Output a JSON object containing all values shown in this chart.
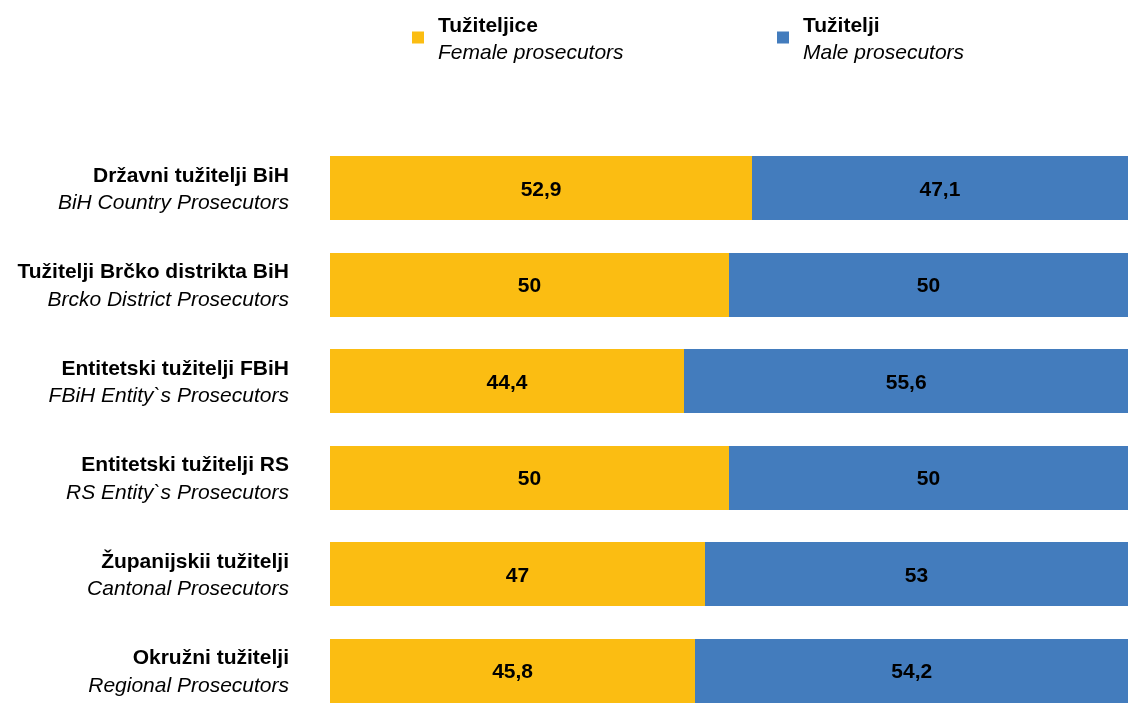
{
  "chart_data": {
    "type": "bar",
    "orientation": "horizontal",
    "stacked": true,
    "legend": "top",
    "tick_labels": "y",
    "xlim": [
      0,
      100
    ],
    "categories": [
      "Državni tužitelji BiH\nBiH Country Prosecutors",
      "Tužitelji Brčko distrikta BiH\nBrcko District Prosecutors",
      "Entitetski tužitelji FBiH\nFBiH Entity`s Prosecutors",
      "Entitetski tužitelji RS\nRS Entity`s Prosecutors",
      "Županijskii tužitelji\nCantonal Prosecutors",
      "Okružni tužitelji\nRegional Prosecutors"
    ],
    "series": [
      {
        "name": "Tužiteljice\nFemale prosecutors",
        "color": "#fbbd12",
        "values": [
          52.9,
          50,
          44.4,
          50,
          47,
          45.8
        ],
        "value_labels": [
          "52,9",
          "50",
          "44,4",
          "50",
          "47",
          "45,8"
        ]
      },
      {
        "name": "Tužitelji\nMale prosecutors",
        "color": "#437cbd",
        "values": [
          47.1,
          50,
          55.6,
          50,
          53,
          54.2
        ],
        "value_labels": [
          "47,1",
          "50",
          "55,6",
          "50",
          "53",
          "54,2"
        ]
      }
    ]
  }
}
